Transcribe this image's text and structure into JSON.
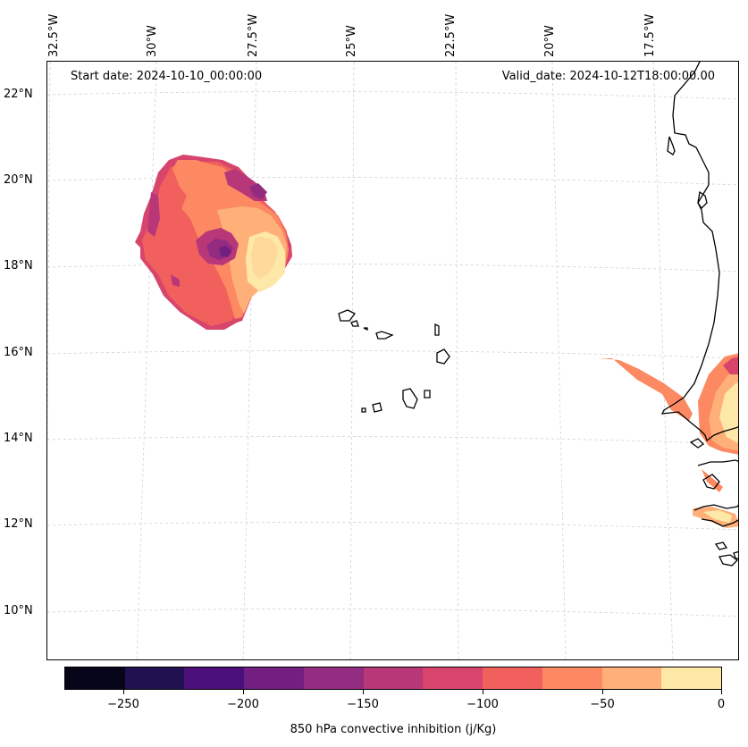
{
  "map": {
    "start_date": "Start date: 2024-10-10_00:00:00",
    "valid_date": "Valid_date: 2024-10-12T18:00:00.00",
    "lon_labels": [
      "32.5°W",
      "30°W",
      "27.5°W",
      "25°W",
      "22.5°W",
      "20°W",
      "17.5°W"
    ],
    "lat_labels": [
      "22°N",
      "20°N",
      "18°N",
      "16°N",
      "14°N",
      "12°N",
      "10°N"
    ],
    "field": "850 hPa convective inhibition",
    "region": "Cabo Verde islands and West African coast"
  },
  "colorbar": {
    "title": "850 hPa convective inhibition (j/Kg)",
    "tick_labels": [
      "−250",
      "−200",
      "−150",
      "−100",
      "−50",
      "0"
    ],
    "levels": [
      -275,
      -250,
      -225,
      -200,
      -175,
      -150,
      -125,
      -100,
      -75,
      -50,
      -25,
      0
    ],
    "colors": [
      "#06051a",
      "#221150",
      "#4a0f78",
      "#721f81",
      "#932b80",
      "#b73779",
      "#d8456c",
      "#f1605d",
      "#fc8961",
      "#feb078",
      "#fed799",
      "#fde8a8"
    ]
  }
}
